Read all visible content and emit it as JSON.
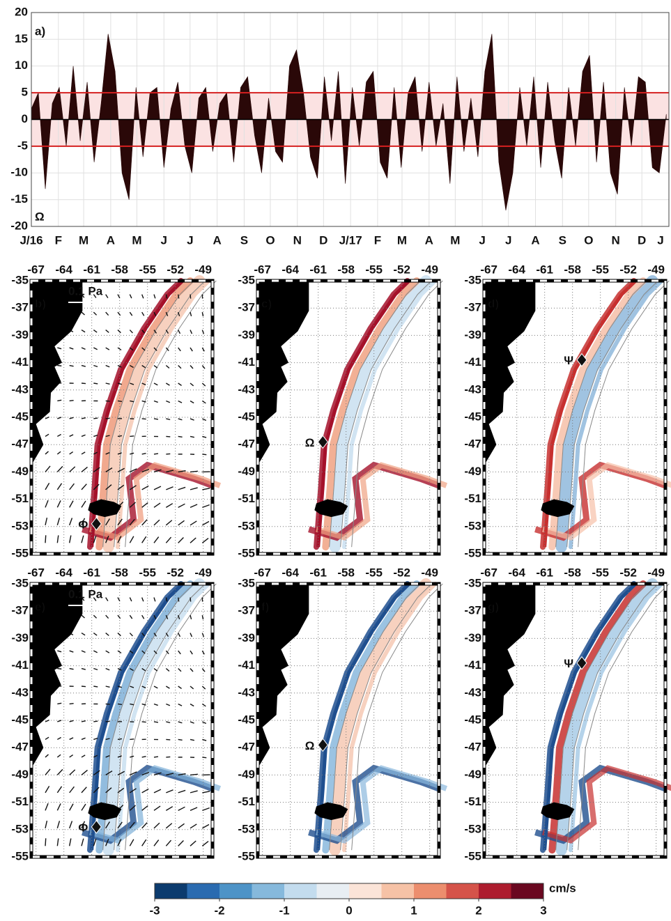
{
  "chart_data": {
    "type": "area",
    "title": "a)",
    "annotation": "Ω",
    "x": [
      0,
      8,
      16,
      24,
      32,
      40,
      48,
      56,
      64,
      72,
      80,
      88,
      96,
      104,
      112,
      120,
      128,
      136,
      144,
      152,
      160,
      168,
      176,
      184,
      192,
      200,
      208,
      216,
      224,
      232,
      240,
      248,
      256,
      264,
      272,
      280,
      288,
      296,
      304,
      312,
      320,
      328,
      336,
      344,
      352,
      360,
      368,
      376,
      384,
      392,
      400,
      408,
      416,
      424,
      432,
      440,
      448,
      456,
      464,
      472,
      480,
      488,
      496,
      504,
      512,
      520,
      528,
      536,
      544,
      552,
      560,
      568,
      576,
      584,
      592,
      600,
      608,
      616,
      624,
      632,
      640,
      648,
      656,
      664,
      672,
      680,
      688,
      696,
      704,
      712,
      720,
      728
    ],
    "values": [
      2,
      5,
      -13,
      3,
      6,
      -5,
      10,
      -4,
      7,
      -8,
      3,
      16,
      9,
      -10,
      -15,
      6,
      -7,
      5,
      6,
      -9,
      2,
      7,
      -5,
      -10,
      4,
      6,
      -6,
      3,
      5,
      -8,
      6,
      8,
      -3,
      -10,
      4,
      -6,
      -8,
      10,
      13,
      5,
      -7,
      -11,
      8,
      -4,
      9,
      -12,
      6,
      -5,
      7,
      9,
      -8,
      -11,
      6,
      -9,
      5,
      8,
      -6,
      7,
      -5,
      3,
      -12,
      8,
      -6,
      4,
      -7,
      9,
      16,
      -8,
      -17,
      -10,
      6,
      -5,
      8,
      -9,
      7,
      -4,
      -11,
      6,
      -5,
      9,
      12,
      -8,
      7,
      -10,
      -14,
      6,
      -5,
      8,
      7,
      -9,
      -10,
      1
    ],
    "color": "#2a0808",
    "xlim": [
      0,
      731
    ],
    "xticks": [
      {
        "value": 0,
        "label": "J/16"
      },
      {
        "value": 31,
        "label": "F"
      },
      {
        "value": 60,
        "label": "M"
      },
      {
        "value": 91,
        "label": "A"
      },
      {
        "value": 121,
        "label": "M"
      },
      {
        "value": 152,
        "label": "J"
      },
      {
        "value": 182,
        "label": "J"
      },
      {
        "value": 213,
        "label": "A"
      },
      {
        "value": 244,
        "label": "S"
      },
      {
        "value": 274,
        "label": "O"
      },
      {
        "value": 305,
        "label": "N"
      },
      {
        "value": 335,
        "label": "D"
      },
      {
        "value": 366,
        "label": "J/17"
      },
      {
        "value": 397,
        "label": "F"
      },
      {
        "value": 425,
        "label": "M"
      },
      {
        "value": 456,
        "label": "A"
      },
      {
        "value": 486,
        "label": "M"
      },
      {
        "value": 517,
        "label": "J"
      },
      {
        "value": 547,
        "label": "J"
      },
      {
        "value": 578,
        "label": "A"
      },
      {
        "value": 609,
        "label": "S"
      },
      {
        "value": 639,
        "label": "O"
      },
      {
        "value": 670,
        "label": "N"
      },
      {
        "value": 700,
        "label": "D"
      },
      {
        "value": 731,
        "label": "J"
      }
    ],
    "ylim": [
      -20,
      20
    ],
    "yticks": [
      -20,
      -15,
      -10,
      -5,
      0,
      5,
      10,
      15,
      20
    ],
    "grid": true,
    "band": [
      -5,
      5
    ],
    "band_color": "#d62020"
  },
  "maps": {
    "lonlim": [
      -67.5,
      -48
    ],
    "latlim": [
      -55,
      -35
    ],
    "lon_ticks": [
      -67,
      -64,
      -61,
      -58,
      -55,
      -52,
      -49
    ],
    "lat_ticks": [
      -35,
      -37,
      -39,
      -41,
      -43,
      -45,
      -47,
      -49,
      -51,
      -53,
      -55
    ],
    "panels": [
      {
        "label": "b)",
        "wind": "0.1 Pa",
        "colors": [
          "#a5112a",
          "#ef9a7a",
          "#f6c9b4"
        ],
        "markers": [
          {
            "label": "Φ",
            "lon": -60.5,
            "lat": -52.8
          }
        ]
      },
      {
        "label": "c)",
        "colors": [
          "#a5112a",
          "#f0a283",
          "#c9dff0"
        ],
        "markers": [
          {
            "label": "Ω",
            "lon": -60.5,
            "lat": -46.8
          }
        ]
      },
      {
        "label": "d)",
        "colors": [
          "#c7302f",
          "#f6c0a8",
          "#8fb9dc"
        ],
        "markers": [
          {
            "label": "Ψ",
            "lon": -57,
            "lat": -40.8
          }
        ]
      },
      {
        "label": "e)",
        "wind": "0.1 Pa",
        "colors": [
          "#1f4f8f",
          "#7fb0d8",
          "#c9dff0"
        ],
        "markers": [
          {
            "label": "Φ",
            "lon": -60.5,
            "lat": -52.8
          }
        ]
      },
      {
        "label": "f)",
        "colors": [
          "#1f4f8f",
          "#8ab8dd",
          "#f6c9b4"
        ],
        "markers": [
          {
            "label": "Ω",
            "lon": -60.5,
            "lat": -46.8
          }
        ]
      },
      {
        "label": "g)",
        "colors": [
          "#1f4f8f",
          "#c7302f",
          "#a8cbe6"
        ],
        "markers": [
          {
            "label": "Ψ",
            "lon": -57,
            "lat": -40.8
          }
        ]
      }
    ]
  },
  "colorbar": {
    "label": "cm/s",
    "lim": [
      -3,
      3
    ],
    "ticks": [
      -3,
      -2,
      -1,
      0,
      1,
      2,
      3
    ],
    "colors": [
      "#0c3b6e",
      "#2a6bb0",
      "#4d93c7",
      "#86b9dc",
      "#c3dcee",
      "#e8eef3",
      "#fbe4d8",
      "#f6c2a6",
      "#ec8e6e",
      "#d5534a",
      "#ad1c2e",
      "#6a0820"
    ]
  }
}
